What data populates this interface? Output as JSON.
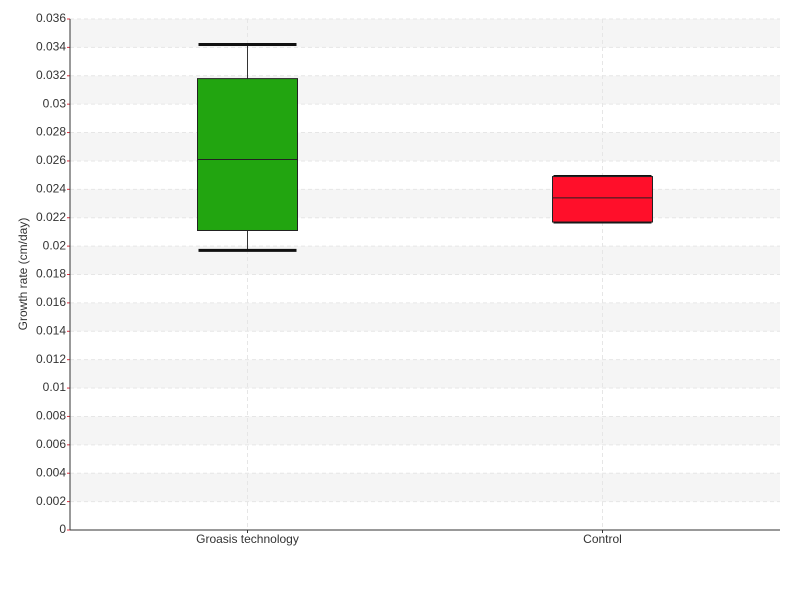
{
  "chart_data": {
    "type": "box",
    "y_label": "Growth rate (cm/day)",
    "categories": [
      "Groasis technology",
      "Control"
    ],
    "boxes": [
      {
        "min": 0.0197,
        "q1": 0.0211,
        "median": 0.0261,
        "q3": 0.0318,
        "max": 0.0342,
        "color": "#22a510"
      },
      {
        "min": 0.0217,
        "q1": 0.0217,
        "median": 0.0234,
        "q3": 0.0249,
        "max": 0.0249,
        "color": "#ff0f2a"
      }
    ],
    "ylim": [
      0,
      0.036
    ],
    "yticks": [
      0,
      0.002,
      0.004,
      0.006,
      0.008,
      0.01,
      0.012,
      0.014,
      0.016,
      0.018,
      0.02,
      0.022,
      0.024,
      0.026,
      0.028,
      0.03,
      0.032,
      0.034,
      0.036
    ],
    "grid": true
  }
}
